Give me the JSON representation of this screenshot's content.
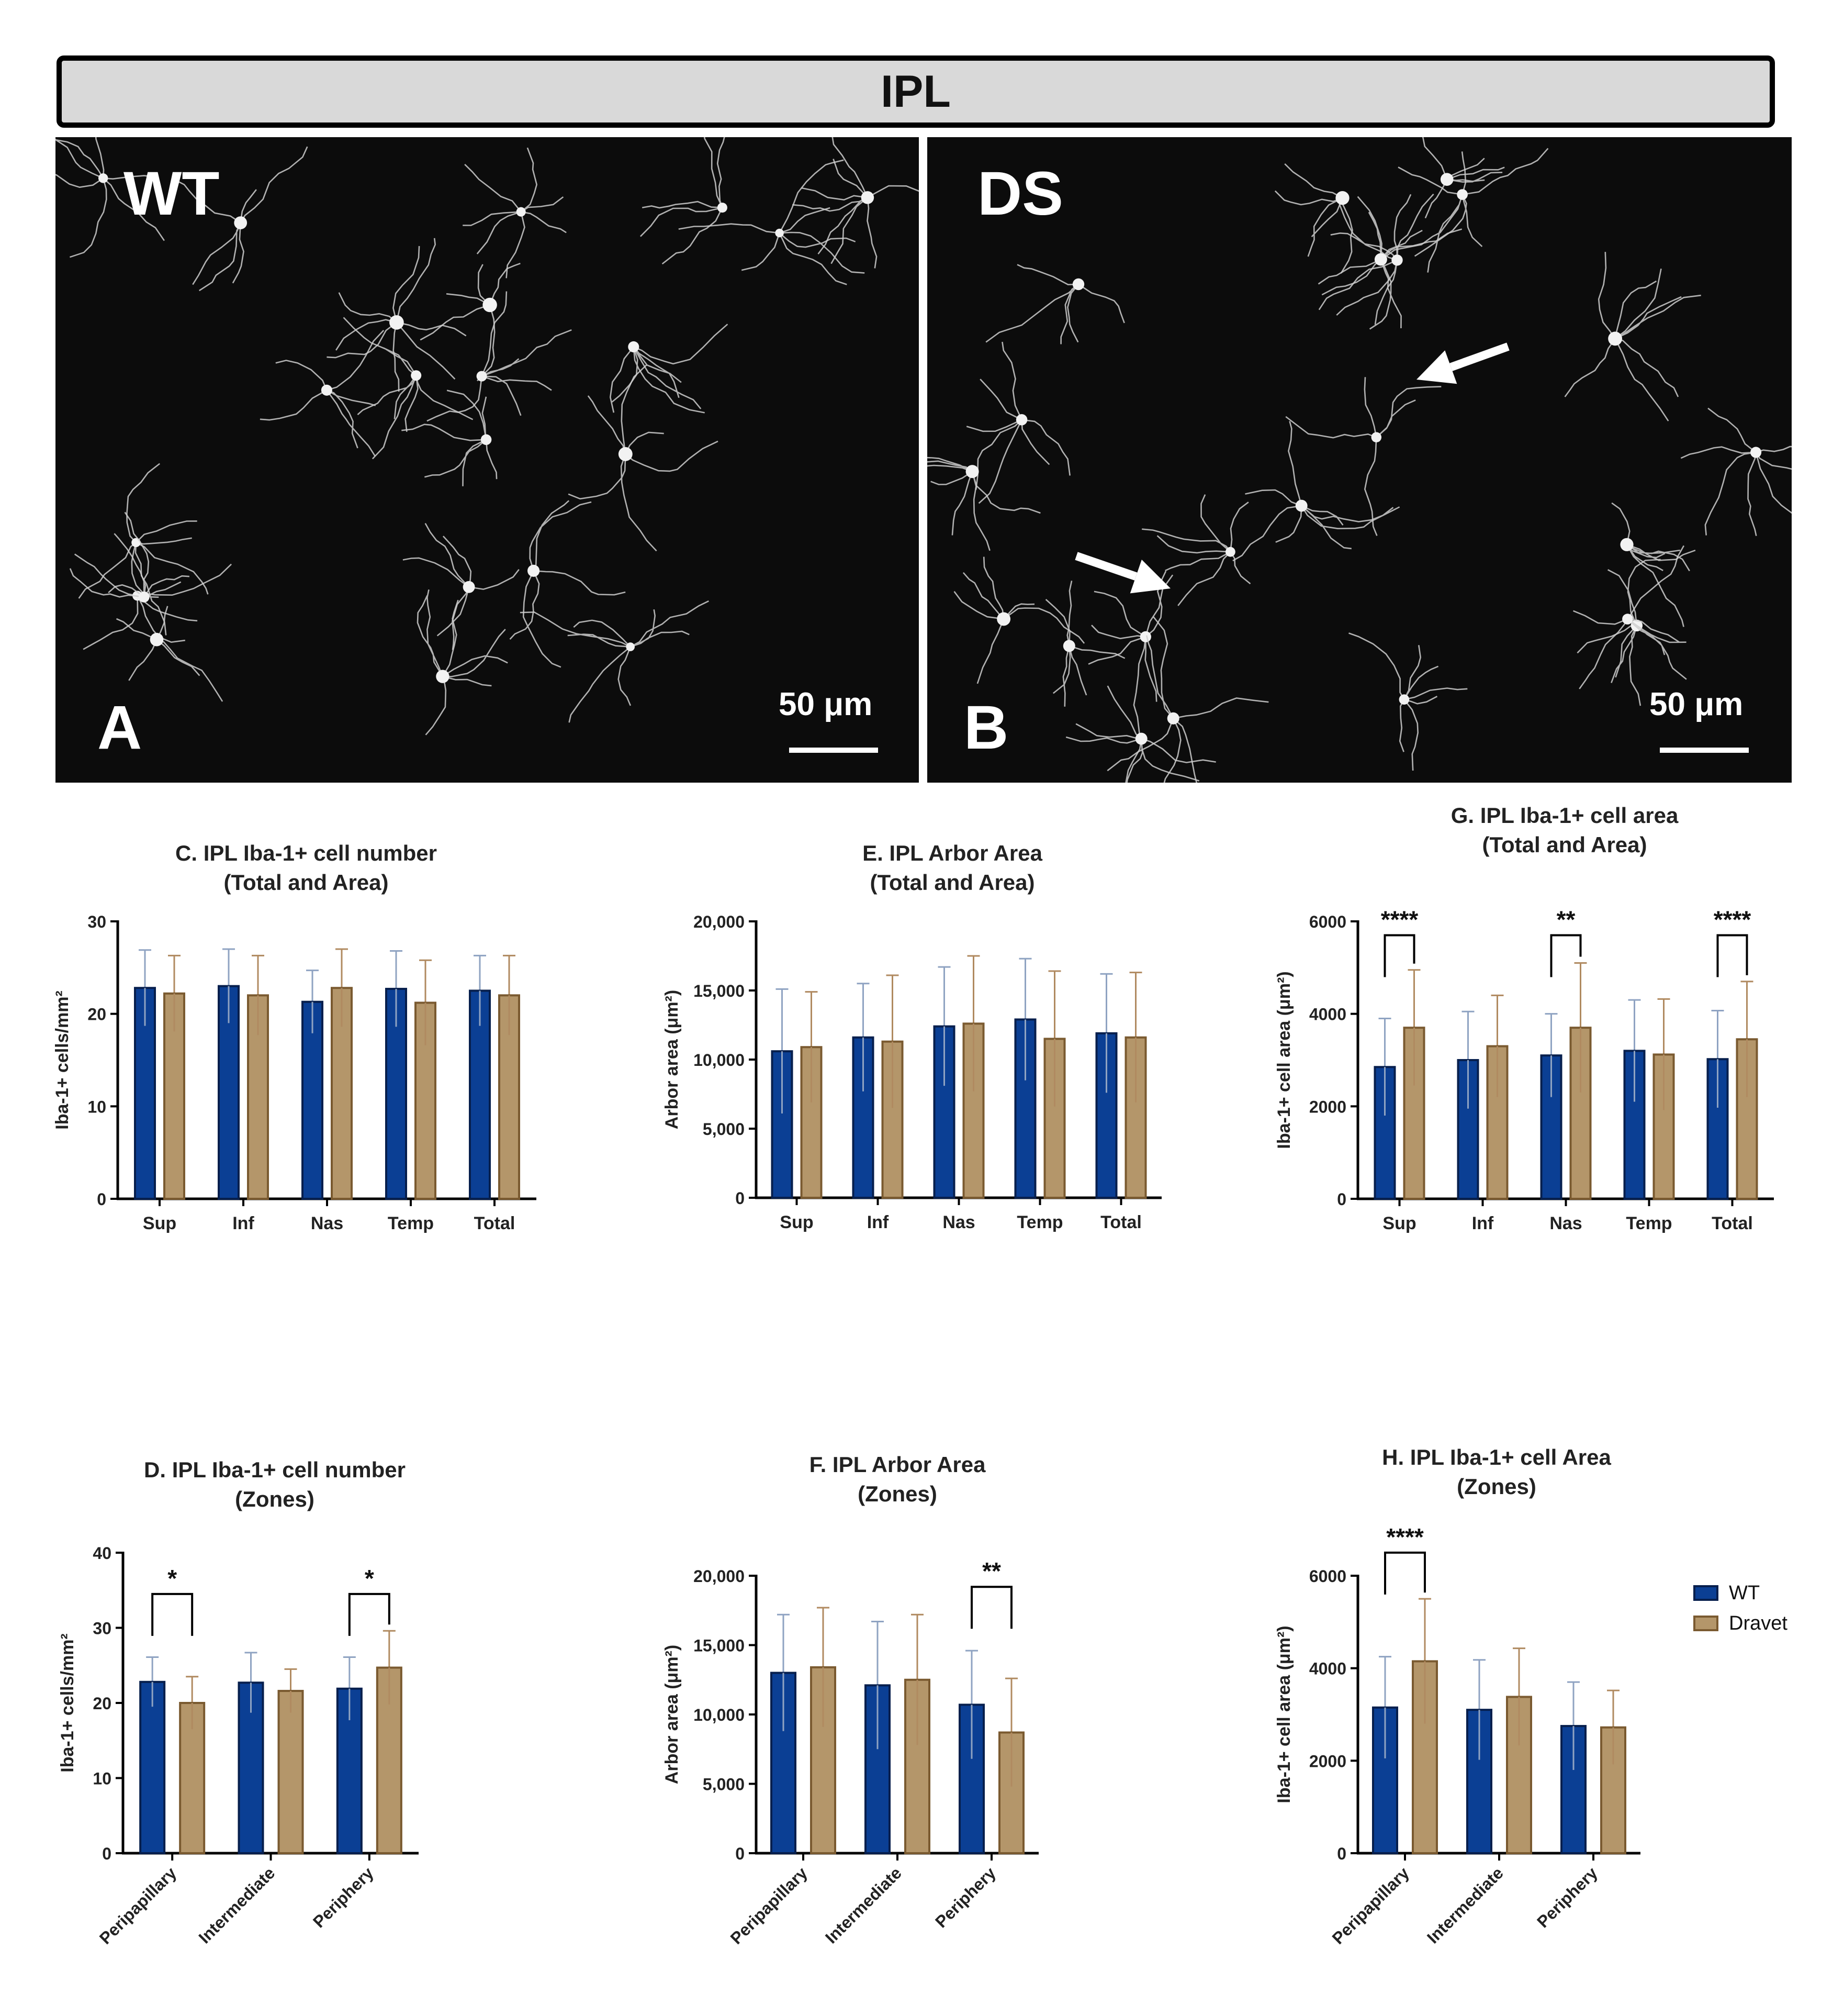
{
  "figure_title": "IPL",
  "colors": {
    "wt_fill": "#0b3f94",
    "wt_edge": "#071f4d",
    "wt_err": "#8fa3c2",
    "dravet_fill": "#b4966a",
    "dravet_edge": "#7a5a30",
    "dravet_err": "#b08a60"
  },
  "legend": {
    "wt": "WT",
    "dravet": "Dravet"
  },
  "panels": {
    "a": {
      "letter": "A",
      "label": "WT",
      "scale_label": "50 μm"
    },
    "b": {
      "letter": "B",
      "label": "DS",
      "scale_label": "50 μm"
    }
  },
  "chart_data": [
    {
      "id": "C",
      "type": "bar",
      "title": "C.  IPL Iba-1+ cell number",
      "subtitle": "(Total and Area)",
      "ylabel": "Iba-1+ cells/mm²",
      "ylim": [
        0,
        30
      ],
      "yticks": [
        0,
        10,
        20,
        30
      ],
      "ytick_labels": [
        "0",
        "10",
        "20",
        "30"
      ],
      "categories": [
        "Sup",
        "Inf",
        "Nas",
        "Temp",
        "Total"
      ],
      "rotate_x": false,
      "series": [
        {
          "name": "WT",
          "values": [
            22.8,
            23.0,
            21.3,
            22.7,
            22.5
          ],
          "errors": [
            4.1,
            4.0,
            3.4,
            4.1,
            3.8
          ]
        },
        {
          "name": "Dravet",
          "values": [
            22.2,
            22.0,
            22.8,
            21.2,
            22.0
          ],
          "errors": [
            4.1,
            4.3,
            4.2,
            4.6,
            4.3
          ]
        }
      ],
      "significance": []
    },
    {
      "id": "E",
      "type": "bar",
      "title": "E.  IPL Arbor Area",
      "subtitle": "(Total and Area)",
      "ylabel": "Arbor area (μm²)",
      "ylim": [
        0,
        20000
      ],
      "yticks": [
        0,
        5000,
        10000,
        15000,
        20000
      ],
      "ytick_labels": [
        "0",
        "5,000",
        "10,000",
        "15,000",
        "20,000"
      ],
      "categories": [
        "Sup",
        "Inf",
        "Nas",
        "Temp",
        "Total"
      ],
      "rotate_x": false,
      "series": [
        {
          "name": "WT",
          "values": [
            10600,
            11600,
            12400,
            12900,
            11900
          ],
          "errors": [
            4500,
            3900,
            4300,
            4400,
            4300
          ]
        },
        {
          "name": "Dravet",
          "values": [
            10900,
            11300,
            12600,
            11500,
            11600
          ],
          "errors": [
            4000,
            4800,
            4900,
            4900,
            4700
          ]
        }
      ],
      "significance": []
    },
    {
      "id": "G",
      "type": "bar",
      "title": "G.  IPL  Iba-1+ cell area",
      "subtitle": "(Total and Area)",
      "ylabel": "Iba-1+ cell area (μm²)",
      "ylim": [
        0,
        6000
      ],
      "yticks": [
        0,
        2000,
        4000,
        6000
      ],
      "ytick_labels": [
        "0",
        "2000",
        "4000",
        "6000"
      ],
      "categories": [
        "Sup",
        "Inf",
        "Nas",
        "Temp",
        "Total"
      ],
      "rotate_x": false,
      "series": [
        {
          "name": "WT",
          "values": [
            2850,
            3000,
            3100,
            3200,
            3020
          ],
          "errors": [
            1050,
            1050,
            900,
            1100,
            1050
          ]
        },
        {
          "name": "Dravet",
          "values": [
            3700,
            3300,
            3700,
            3120,
            3450
          ],
          "errors": [
            1250,
            1100,
            1400,
            1200,
            1250
          ]
        }
      ],
      "significance": [
        {
          "category": 0,
          "label": "****",
          "y": 5700
        },
        {
          "category": 2,
          "label": "**",
          "y": 5700
        },
        {
          "category": 4,
          "label": "****",
          "y": 5700
        }
      ]
    },
    {
      "id": "D",
      "type": "bar",
      "title": "D.  IPL Iba-1+ cell number",
      "subtitle": "(Zones)",
      "ylabel": "Iba-1+ cells/mm²",
      "ylim": [
        0,
        40
      ],
      "yticks": [
        0,
        10,
        20,
        30,
        40
      ],
      "ytick_labels": [
        "0",
        "10",
        "20",
        "30",
        "40"
      ],
      "categories": [
        "Peripapillary",
        "Intermediate",
        "Periphery"
      ],
      "rotate_x": true,
      "series": [
        {
          "name": "WT",
          "values": [
            22.8,
            22.7,
            21.9
          ],
          "errors": [
            3.3,
            4.0,
            4.2
          ]
        },
        {
          "name": "Dravet",
          "values": [
            20.0,
            21.6,
            24.7
          ],
          "errors": [
            3.5,
            2.9,
            4.9
          ]
        }
      ],
      "significance": [
        {
          "category": 0,
          "label": "*",
          "y": 34.5
        },
        {
          "category": 2,
          "label": "*",
          "y": 34.5
        }
      ]
    },
    {
      "id": "F",
      "type": "bar",
      "title": "F.   IPL Arbor Area",
      "subtitle": "(Zones)",
      "ylabel": "Arbor area (μm²)",
      "ylim": [
        0,
        20000
      ],
      "yticks": [
        0,
        5000,
        10000,
        15000,
        20000
      ],
      "ytick_labels": [
        "0",
        "5,000",
        "10,000",
        "15,000",
        "20,000"
      ],
      "categories": [
        "Peripapillary",
        "Intermediate",
        "Periphery"
      ],
      "rotate_x": true,
      "series": [
        {
          "name": "WT",
          "values": [
            13000,
            12100,
            10700
          ],
          "errors": [
            4200,
            4600,
            3900
          ]
        },
        {
          "name": "Dravet",
          "values": [
            13400,
            12500,
            8700
          ],
          "errors": [
            4300,
            4700,
            3900
          ]
        }
      ],
      "significance": [
        {
          "category": 2,
          "label": "**",
          "y": 19200
        }
      ]
    },
    {
      "id": "H",
      "type": "bar",
      "title": "H.   IPL Iba-1+ cell Area",
      "subtitle": "(Zones)",
      "ylabel": "Iba-1+ cell area (μm²)",
      "ylim": [
        0,
        6000
      ],
      "yticks": [
        0,
        2000,
        4000,
        6000
      ],
      "ytick_labels": [
        "0",
        "2000",
        "4000",
        "6000"
      ],
      "categories": [
        "Peripapillary",
        "Intermediate",
        "Periphery"
      ],
      "rotate_x": true,
      "series": [
        {
          "name": "WT",
          "values": [
            3150,
            3100,
            2750
          ],
          "errors": [
            1100,
            1080,
            950
          ]
        },
        {
          "name": "Dravet",
          "values": [
            4150,
            3380,
            2720
          ],
          "errors": [
            1350,
            1050,
            800
          ]
        }
      ],
      "significance": [
        {
          "category": 0,
          "label": "****",
          "y": 6500
        }
      ]
    }
  ]
}
